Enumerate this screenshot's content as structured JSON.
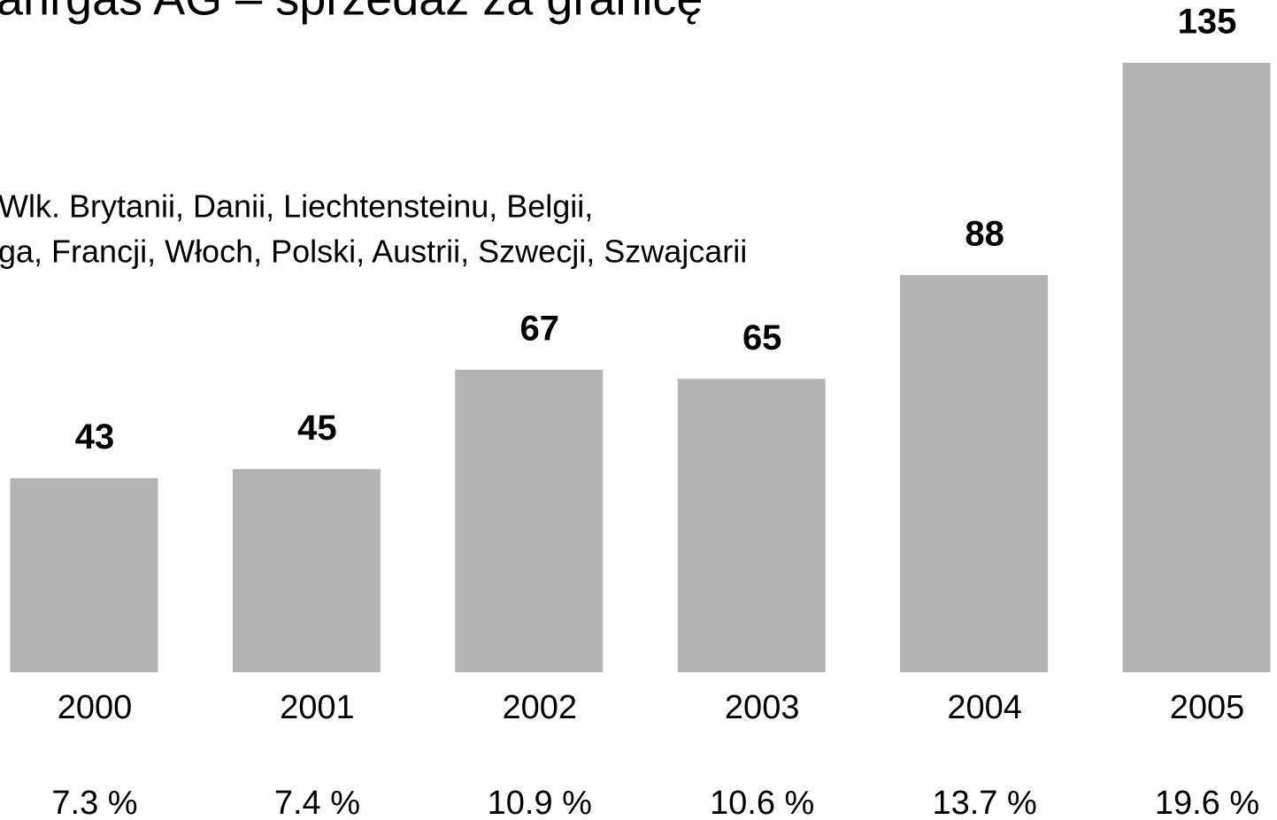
{
  "chart_data": {
    "type": "bar",
    "title": "ahrgas AG – sprzedaż za granicę",
    "subtitle_lines": [
      "Wlk. Brytanii, Danii, Liechtensteinu, Belgii,",
      "ga, Francji, Włoch, Polski, Austrii, Szwecji, Szwajcarii"
    ],
    "categories": [
      "2000",
      "2001",
      "2002",
      "2003",
      "2004",
      "2005"
    ],
    "values": [
      43,
      45,
      67,
      65,
      88,
      135
    ],
    "share_labels": [
      "7.3 %",
      "7.4 %",
      "10.9 %",
      "10.6 %",
      "13.7 %",
      "19.6 %"
    ],
    "color": "#b3b3b3",
    "ylim": [
      0,
      135
    ]
  }
}
